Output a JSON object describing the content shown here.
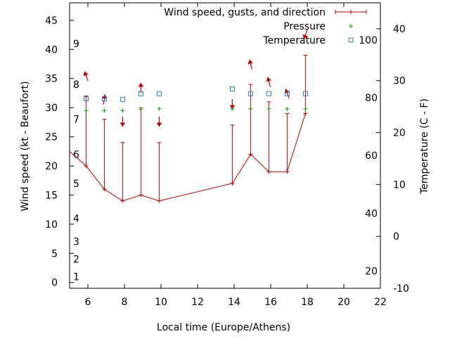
{
  "chart_data": {
    "type": "line",
    "xlabel": "Local time (Europe/Athens)",
    "ylabel": "Wind speed (kt - Beaufort)",
    "y2label": "Temperature (C - F)",
    "xlim": [
      5,
      22
    ],
    "ylim": [
      -1,
      48
    ],
    "y2lim": [
      -10,
      45
    ],
    "x_ticks": [
      6,
      8,
      10,
      12,
      14,
      16,
      18,
      20,
      22
    ],
    "y_ticks": [
      0,
      5,
      10,
      15,
      20,
      25,
      30,
      35,
      40,
      45
    ],
    "y2_ticks": [
      -10,
      0,
      10,
      20,
      30,
      40
    ],
    "beaufort_labels": [
      {
        "label": "1",
        "y": 1
      },
      {
        "label": "2",
        "y": 4
      },
      {
        "label": "3",
        "y": 7
      },
      {
        "label": "4",
        "y": 11
      },
      {
        "label": "5",
        "y": 17
      },
      {
        "label": "6",
        "y": 22
      },
      {
        "label": "7",
        "y": 28
      },
      {
        "label": "8",
        "y": 34
      },
      {
        "label": "9",
        "y": 41
      }
    ],
    "fahrenheit_labels": [
      {
        "label": "20",
        "y2": -6.7
      },
      {
        "label": "40",
        "y2": 4.4
      },
      {
        "label": "60",
        "y2": 15.6
      },
      {
        "label": "80",
        "y2": 26.7
      },
      {
        "label": "100",
        "y2": 37.8
      }
    ],
    "legend": {
      "placement": "top-right",
      "entries": [
        {
          "label": "Wind speed, gusts, and direction",
          "color": "#c00000"
        },
        {
          "label": "Pressure",
          "color": "#00a000"
        },
        {
          "label": "Temperature",
          "color": "#2878c8"
        }
      ]
    },
    "series": [
      {
        "name": "Wind speed, gusts, and direction",
        "color": "#c00000",
        "x": [
          5,
          5.9,
          6.9,
          7.9,
          8.9,
          9.9,
          13.9,
          14.9,
          15.9,
          16.9,
          17.9
        ],
        "wind": [
          22.5,
          20,
          16,
          14,
          15,
          14,
          17,
          22,
          19,
          19,
          29
        ],
        "gust": [
          null,
          32,
          28,
          24,
          30,
          24,
          27,
          34,
          31,
          29,
          39
        ],
        "direction_marker_y": [
          null,
          35.5,
          31.5,
          27.5,
          33.5,
          27.5,
          30.5,
          37.5,
          34.5,
          32.5,
          42.5
        ],
        "direction_deg": [
          null,
          340,
          10,
          180,
          0,
          180,
          180,
          345,
          345,
          340,
          200
        ]
      },
      {
        "name": "Pressure",
        "color": "#00a000",
        "x": [
          5.9,
          6.9,
          7.9,
          8.9,
          9.9,
          13.9,
          14.9,
          15.9,
          16.9,
          17.9
        ],
        "values": [
          29.5,
          29.5,
          29.5,
          29.7,
          29.8,
          29.8,
          29.8,
          29.8,
          29.8,
          29.8
        ]
      },
      {
        "name": "Temperature",
        "axis": "y2",
        "color": "#2878c8",
        "x": [
          5.9,
          6.9,
          7.9,
          8.9,
          9.9,
          13.9,
          14.9,
          15.9,
          16.9,
          17.9
        ],
        "values": [
          26.5,
          26.5,
          26.4,
          27.5,
          27.5,
          28.4,
          27.5,
          27.5,
          27.5,
          27.5
        ]
      }
    ]
  }
}
